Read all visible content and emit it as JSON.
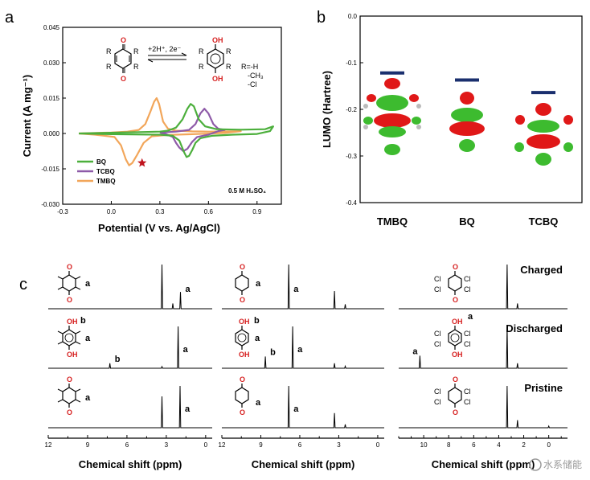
{
  "panels": {
    "a": "a",
    "b": "b",
    "c": "c"
  },
  "chart_data": [
    {
      "id": "a",
      "type": "line",
      "xlabel": "Potential (V vs. Ag/AgCl)",
      "ylabel": "Current (A mg⁻¹)",
      "xlim": [
        -0.3,
        1.05
      ],
      "ylim": [
        -0.03,
        0.045
      ],
      "xticks": [
        -0.3,
        0.0,
        0.3,
        0.6,
        0.9
      ],
      "xtick_labels": [
        "-0.3",
        "0.0",
        "0.3",
        "0.6",
        "0.9"
      ],
      "yticks": [
        -0.03,
        -0.015,
        0.0,
        0.015,
        0.03,
        0.045
      ],
      "ytick_labels": [
        "-0.030",
        "-0.015",
        "0.000",
        "0.015",
        "0.030",
        "0.045"
      ],
      "legend_position": "bottom-left",
      "annotation": "0.5 M H₂SO₄",
      "scheme": {
        "reaction": "+2H⁺, 2e⁻",
        "substituents": "R=-H\n-CH₃\n-Cl"
      },
      "series": [
        {
          "name": "BQ",
          "color": "#4caf3c",
          "points": [
            [
              -0.2,
              0.0
            ],
            [
              0.0,
              0.0003
            ],
            [
              0.2,
              0.0006
            ],
            [
              0.3,
              0.0008
            ],
            [
              0.35,
              0.0012
            ],
            [
              0.4,
              0.0025
            ],
            [
              0.44,
              0.006
            ],
            [
              0.47,
              0.0105
            ],
            [
              0.49,
              0.0125
            ],
            [
              0.51,
              0.0115
            ],
            [
              0.54,
              0.006
            ],
            [
              0.58,
              0.003
            ],
            [
              0.65,
              0.0018
            ],
            [
              0.8,
              0.0016
            ],
            [
              0.95,
              0.0018
            ],
            [
              1.0,
              0.003
            ],
            [
              0.98,
              0.001
            ],
            [
              0.9,
              -0.0002
            ],
            [
              0.75,
              -0.0005
            ],
            [
              0.62,
              -0.001
            ],
            [
              0.55,
              -0.002
            ],
            [
              0.52,
              -0.004
            ],
            [
              0.5,
              -0.007
            ],
            [
              0.48,
              -0.0095
            ],
            [
              0.465,
              -0.01
            ],
            [
              0.45,
              -0.008
            ],
            [
              0.42,
              -0.003
            ],
            [
              0.38,
              -0.001
            ],
            [
              0.3,
              -0.0005
            ],
            [
              0.0,
              -0.0003
            ],
            [
              -0.2,
              0.0
            ]
          ]
        },
        {
          "name": "TCBQ",
          "color": "#8e5aa8",
          "points": [
            [
              0.3,
              0.0004
            ],
            [
              0.4,
              0.0008
            ],
            [
              0.48,
              0.0015
            ],
            [
              0.52,
              0.004
            ],
            [
              0.55,
              0.0085
            ],
            [
              0.575,
              0.0105
            ],
            [
              0.6,
              0.0085
            ],
            [
              0.63,
              0.004
            ],
            [
              0.66,
              0.002
            ],
            [
              0.7,
              0.0015
            ],
            [
              0.66,
              0.001
            ],
            [
              0.6,
              -0.0005
            ],
            [
              0.53,
              -0.0015
            ],
            [
              0.5,
              -0.0035
            ],
            [
              0.47,
              -0.0065
            ],
            [
              0.445,
              -0.0075
            ],
            [
              0.42,
              -0.006
            ],
            [
              0.4,
              -0.004
            ],
            [
              0.38,
              -0.0015
            ],
            [
              0.34,
              -0.0003
            ],
            [
              0.3,
              0.0004
            ]
          ]
        },
        {
          "name": "TMBQ",
          "color": "#f2a65a",
          "points": [
            [
              -0.2,
              0.0
            ],
            [
              0.0,
              0.0004
            ],
            [
              0.1,
              0.0008
            ],
            [
              0.17,
              0.0015
            ],
            [
              0.21,
              0.004
            ],
            [
              0.24,
              0.009
            ],
            [
              0.265,
              0.0135
            ],
            [
              0.28,
              0.015
            ],
            [
              0.295,
              0.0125
            ],
            [
              0.32,
              0.005
            ],
            [
              0.35,
              0.002
            ],
            [
              0.4,
              0.0012
            ],
            [
              0.5,
              0.0009
            ],
            [
              0.6,
              0.0008
            ],
            [
              0.75,
              0.0009
            ],
            [
              0.8,
              0.001
            ],
            [
              0.7,
              0.0002
            ],
            [
              0.5,
              -0.0003
            ],
            [
              0.35,
              -0.0006
            ],
            [
              0.25,
              -0.0012
            ],
            [
              0.2,
              -0.004
            ],
            [
              0.16,
              -0.009
            ],
            [
              0.13,
              -0.0125
            ],
            [
              0.11,
              -0.0135
            ],
            [
              0.09,
              -0.011
            ],
            [
              0.06,
              -0.005
            ],
            [
              0.02,
              -0.0015
            ],
            [
              -0.1,
              -0.0005
            ],
            [
              -0.2,
              0.0
            ]
          ]
        }
      ],
      "star": {
        "x": 0.19,
        "y": -0.0125
      }
    },
    {
      "id": "b",
      "type": "scatter",
      "ylabel": "LUMO (Hartree)",
      "ylim": [
        -0.4,
        0.0
      ],
      "yticks": [
        0.0,
        -0.1,
        -0.2,
        -0.3,
        -0.4
      ],
      "ytick_labels": [
        "0.0",
        "-0.1",
        "-0.2",
        "-0.3",
        "-0.4"
      ],
      "categories": [
        "TMBQ",
        "BQ",
        "TCBQ"
      ],
      "values": [
        -0.122,
        -0.137,
        -0.164
      ]
    },
    {
      "id": "c",
      "type": "line",
      "xlabel": "Chemical shift (ppm)",
      "states": [
        "Charged",
        "Discharged",
        "Pristine"
      ],
      "columns": [
        {
          "name": "TMBQ",
          "xticks": [
            12,
            9,
            6,
            3,
            0
          ],
          "xtick_labels": [
            "12",
            "9",
            "6",
            "3",
            "0"
          ],
          "tick_positions": [
            12,
            10.5,
            9,
            7.5,
            6,
            4.5,
            3,
            1.5,
            0
          ],
          "rows": [
            {
              "state": "Charged",
              "labels": [
                "a"
              ],
              "peaks": [
                [
                  3.33,
                  1.0
                ],
                [
                  2.5,
                  0.12
                ],
                [
                  1.92,
                  0.38
                ]
              ],
              "peak_labels": [
                {
                  "text": "a",
                  "ppm": 1.92
                }
              ]
            },
            {
              "state": "Discharged",
              "labels": [
                "b",
                "a"
              ],
              "peaks": [
                [
                  7.3,
                  0.12
                ],
                [
                  3.33,
                  0.04
                ],
                [
                  2.1,
                  1.0
                ]
              ],
              "peak_labels": [
                {
                  "text": "b",
                  "ppm": 7.3
                },
                {
                  "text": "a",
                  "ppm": 2.1
                }
              ]
            },
            {
              "state": "Pristine",
              "labels": [
                "a"
              ],
              "peaks": [
                [
                  3.33,
                  0.75
                ],
                [
                  1.95,
                  1.0
                ]
              ],
              "peak_labels": [
                {
                  "text": "a",
                  "ppm": 1.95
                }
              ]
            }
          ]
        },
        {
          "name": "BQ",
          "xticks": [
            12,
            9,
            6,
            3,
            0
          ],
          "xtick_labels": [
            "12",
            "9",
            "6",
            "3",
            "0"
          ],
          "tick_positions": [
            12,
            10.5,
            9,
            7.5,
            6,
            4.5,
            3,
            1.5,
            0
          ],
          "rows": [
            {
              "state": "Charged",
              "labels": [
                "a"
              ],
              "peaks": [
                [
                  6.85,
                  1.0
                ],
                [
                  3.33,
                  0.4
                ],
                [
                  2.5,
                  0.1
                ]
              ],
              "peak_labels": [
                {
                  "text": "a",
                  "ppm": 6.85
                }
              ]
            },
            {
              "state": "Discharged",
              "labels": [
                "b",
                "a"
              ],
              "peaks": [
                [
                  8.65,
                  0.28
                ],
                [
                  6.55,
                  1.0
                ],
                [
                  3.33,
                  0.12
                ],
                [
                  2.5,
                  0.05
                ]
              ],
              "peak_labels": [
                {
                  "text": "b",
                  "ppm": 8.65
                },
                {
                  "text": "a",
                  "ppm": 6.55
                }
              ]
            },
            {
              "state": "Pristine",
              "labels": [
                "a"
              ],
              "peaks": [
                [
                  6.85,
                  1.0
                ],
                [
                  3.33,
                  0.35
                ],
                [
                  2.5,
                  0.08
                ]
              ],
              "peak_labels": [
                {
                  "text": "a",
                  "ppm": 6.85
                }
              ]
            }
          ]
        },
        {
          "name": "TCBQ",
          "xticks": [
            10,
            8,
            6,
            4,
            2,
            0
          ],
          "xtick_labels": [
            "10",
            "8",
            "6",
            "4",
            "2",
            "0"
          ],
          "tick_positions": [
            12,
            11,
            10,
            9,
            8,
            7,
            6,
            5,
            4,
            3,
            2,
            1,
            0,
            -1
          ],
          "rows": [
            {
              "state": "Charged",
              "labels": [],
              "peaks": [
                [
                  3.33,
                  1.0
                ],
                [
                  2.5,
                  0.12
                ]
              ],
              "peak_labels": []
            },
            {
              "state": "Discharged",
              "labels": [
                "a"
              ],
              "peaks": [
                [
                  10.3,
                  0.3
                ],
                [
                  3.33,
                  1.0
                ],
                [
                  2.5,
                  0.12
                ]
              ],
              "peak_labels": [
                {
                  "text": "a",
                  "ppm": 10.3
                }
              ]
            },
            {
              "state": "Pristine",
              "labels": [],
              "peaks": [
                [
                  3.33,
                  1.0
                ],
                [
                  2.5,
                  0.18
                ],
                [
                  0.0,
                  0.04
                ]
              ],
              "peak_labels": []
            }
          ]
        }
      ]
    }
  ],
  "watermark": "水系储能"
}
